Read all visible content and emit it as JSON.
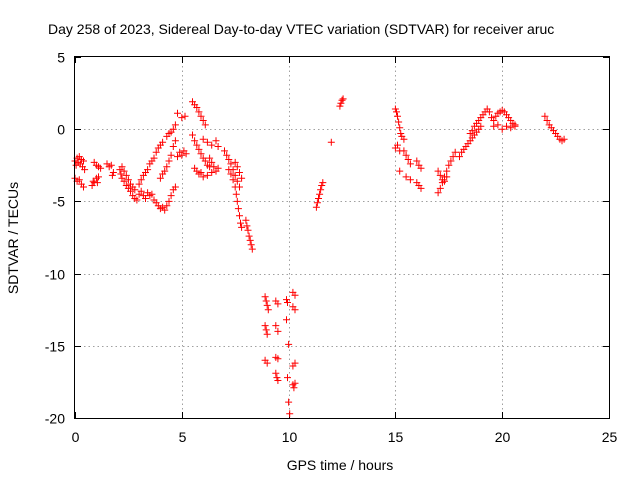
{
  "chart_data": {
    "type": "scatter",
    "title": "Day 258 of 2023, Sidereal Day-to-day VTEC variation (SDTVAR) for receiver aruc",
    "xlabel": "GPS time / hours",
    "ylabel": "SDTVAR / TECUs",
    "xlim": [
      0,
      25
    ],
    "ylim": [
      -20,
      5
    ],
    "xticks": [
      0,
      5,
      10,
      15,
      20,
      25
    ],
    "yticks": [
      5,
      0,
      -5,
      -10,
      -15,
      -20
    ],
    "xtick_labels": [
      "0",
      "5",
      "10",
      "15",
      "20",
      "25"
    ],
    "ytick_labels": [
      "5",
      "0",
      "-5",
      "-10",
      "-15",
      "-20"
    ],
    "grid": true,
    "marker": "+",
    "color": "#ff0000",
    "series": [
      {
        "name": "SDTVAR",
        "points": [
          [
            0.0,
            -2.2
          ],
          [
            0.05,
            -2.5
          ],
          [
            0.1,
            -2.0
          ],
          [
            0.15,
            -2.3
          ],
          [
            0.2,
            -1.9
          ],
          [
            0.25,
            -2.4
          ],
          [
            0.3,
            -2.1
          ],
          [
            0.35,
            -2.6
          ],
          [
            0.4,
            -2.2
          ],
          [
            0.45,
            -2.8
          ],
          [
            0.0,
            -3.4
          ],
          [
            0.1,
            -3.6
          ],
          [
            0.2,
            -3.5
          ],
          [
            0.3,
            -3.8
          ],
          [
            0.4,
            -4.0
          ],
          [
            0.8,
            -3.9
          ],
          [
            0.85,
            -3.6
          ],
          [
            0.9,
            -3.7
          ],
          [
            1.0,
            -3.4
          ],
          [
            1.05,
            -3.7
          ],
          [
            1.1,
            -3.3
          ],
          [
            0.9,
            -2.3
          ],
          [
            1.0,
            -2.5
          ],
          [
            1.1,
            -2.6
          ],
          [
            1.2,
            -2.7
          ],
          [
            1.5,
            -2.4
          ],
          [
            1.6,
            -2.6
          ],
          [
            1.7,
            -2.5
          ],
          [
            1.75,
            -3.2
          ],
          [
            1.8,
            -3.0
          ],
          [
            2.1,
            -2.8
          ],
          [
            2.15,
            -3.1
          ],
          [
            2.2,
            -3.4
          ],
          [
            2.3,
            -3.6
          ],
          [
            2.4,
            -3.9
          ],
          [
            2.5,
            -4.1
          ],
          [
            2.6,
            -4.3
          ],
          [
            2.7,
            -4.6
          ],
          [
            2.8,
            -4.8
          ],
          [
            2.9,
            -4.9
          ],
          [
            2.2,
            -2.6
          ],
          [
            2.3,
            -2.9
          ],
          [
            2.4,
            -3.2
          ],
          [
            2.5,
            -3.5
          ],
          [
            2.6,
            -3.8
          ],
          [
            2.7,
            -4.0
          ],
          [
            2.8,
            -4.2
          ],
          [
            3.0,
            -3.8
          ],
          [
            3.1,
            -3.5
          ],
          [
            3.2,
            -3.2
          ],
          [
            3.3,
            -3.0
          ],
          [
            3.4,
            -2.8
          ],
          [
            3.0,
            -4.5
          ],
          [
            3.1,
            -4.3
          ],
          [
            3.2,
            -4.6
          ],
          [
            3.3,
            -4.8
          ],
          [
            3.4,
            -4.4
          ],
          [
            3.5,
            -4.6
          ],
          [
            3.6,
            -4.5
          ],
          [
            3.7,
            -4.9
          ],
          [
            3.5,
            -2.4
          ],
          [
            3.6,
            -2.2
          ],
          [
            3.7,
            -2.0
          ],
          [
            3.8,
            -1.6
          ],
          [
            3.9,
            -1.3
          ],
          [
            4.0,
            -1.1
          ],
          [
            4.1,
            -0.9
          ],
          [
            3.8,
            -5.1
          ],
          [
            3.9,
            -5.3
          ],
          [
            4.0,
            -5.5
          ],
          [
            4.1,
            -5.4
          ],
          [
            4.2,
            -5.6
          ],
          [
            4.3,
            -5.3
          ],
          [
            4.4,
            -5.0
          ],
          [
            4.5,
            -4.6
          ],
          [
            4.6,
            -4.2
          ],
          [
            4.7,
            -4.0
          ],
          [
            4.0,
            -3.4
          ],
          [
            4.1,
            -3.1
          ],
          [
            4.2,
            -2.9
          ],
          [
            4.3,
            -2.6
          ],
          [
            4.4,
            -2.2
          ],
          [
            4.5,
            -1.8
          ],
          [
            4.6,
            -1.2
          ],
          [
            4.7,
            -0.8
          ],
          [
            4.3,
            -0.5
          ],
          [
            4.4,
            -0.3
          ],
          [
            4.5,
            -0.2
          ],
          [
            4.6,
            0.0
          ],
          [
            4.7,
            0.3
          ],
          [
            4.8,
            -1.9
          ],
          [
            4.9,
            -1.6
          ],
          [
            5.0,
            -1.8
          ],
          [
            5.1,
            -1.5
          ],
          [
            5.2,
            -1.7
          ],
          [
            4.8,
            1.1
          ],
          [
            5.0,
            0.8
          ],
          [
            5.15,
            0.9
          ],
          [
            5.5,
            1.9
          ],
          [
            5.6,
            1.7
          ],
          [
            5.7,
            1.5
          ],
          [
            5.8,
            1.2
          ],
          [
            5.9,
            0.9
          ],
          [
            6.0,
            0.6
          ],
          [
            6.1,
            0.3
          ],
          [
            5.5,
            -0.4
          ],
          [
            5.6,
            -0.8
          ],
          [
            5.7,
            -1.1
          ],
          [
            5.8,
            -1.4
          ],
          [
            5.9,
            -1.7
          ],
          [
            6.0,
            -2.0
          ],
          [
            6.1,
            -2.2
          ],
          [
            6.2,
            -2.5
          ],
          [
            6.3,
            -2.6
          ],
          [
            5.6,
            -2.7
          ],
          [
            5.7,
            -2.9
          ],
          [
            5.8,
            -3.1
          ],
          [
            5.9,
            -3.0
          ],
          [
            6.0,
            -3.3
          ],
          [
            6.2,
            -3.2
          ],
          [
            6.4,
            -3.0
          ],
          [
            6.0,
            -0.7
          ],
          [
            6.2,
            -0.9
          ],
          [
            6.4,
            -1.1
          ],
          [
            6.6,
            -0.8
          ],
          [
            6.7,
            -1.2
          ],
          [
            6.3,
            -2.0
          ],
          [
            6.4,
            -2.3
          ],
          [
            6.5,
            -2.6
          ],
          [
            6.6,
            -2.9
          ],
          [
            6.7,
            -2.7
          ],
          [
            7.0,
            -1.5
          ],
          [
            7.1,
            -1.8
          ],
          [
            7.2,
            -2.1
          ],
          [
            7.3,
            -2.4
          ],
          [
            7.4,
            -2.8
          ],
          [
            7.5,
            -3.2
          ],
          [
            7.6,
            -3.6
          ],
          [
            7.7,
            -4.0
          ],
          [
            7.2,
            -2.8
          ],
          [
            7.3,
            -3.1
          ],
          [
            7.4,
            -3.5
          ],
          [
            7.5,
            -4.0
          ],
          [
            7.55,
            -4.5
          ],
          [
            7.6,
            -5.0
          ],
          [
            7.65,
            -5.5
          ],
          [
            7.7,
            -6.0
          ],
          [
            7.75,
            -6.5
          ],
          [
            7.8,
            -6.8
          ],
          [
            7.5,
            -2.3
          ],
          [
            7.6,
            -2.6
          ],
          [
            7.7,
            -3.0
          ],
          [
            7.8,
            -3.4
          ],
          [
            8.0,
            -6.3
          ],
          [
            8.05,
            -6.7
          ],
          [
            8.1,
            -7.0
          ],
          [
            8.15,
            -7.4
          ],
          [
            8.2,
            -7.7
          ],
          [
            8.25,
            -8.0
          ],
          [
            8.3,
            -8.3
          ],
          [
            8.9,
            -11.6
          ],
          [
            8.95,
            -11.9
          ],
          [
            9.0,
            -12.2
          ],
          [
            9.05,
            -12.5
          ],
          [
            8.9,
            -13.6
          ],
          [
            8.95,
            -13.9
          ],
          [
            9.0,
            -14.2
          ],
          [
            8.9,
            -16.0
          ],
          [
            9.0,
            -16.2
          ],
          [
            9.4,
            -11.9
          ],
          [
            9.5,
            -12.1
          ],
          [
            9.4,
            -13.6
          ],
          [
            9.5,
            -14.0
          ],
          [
            9.4,
            -15.8
          ],
          [
            9.5,
            -15.9
          ],
          [
            9.4,
            -16.9
          ],
          [
            9.45,
            -17.2
          ],
          [
            9.5,
            -17.4
          ],
          [
            9.9,
            -11.8
          ],
          [
            9.95,
            -12.0
          ],
          [
            9.9,
            -13.2
          ],
          [
            10.0,
            -14.9
          ],
          [
            9.95,
            -17.2
          ],
          [
            10.0,
            -18.9
          ],
          [
            10.05,
            -19.7
          ],
          [
            10.2,
            -11.3
          ],
          [
            10.3,
            -11.5
          ],
          [
            10.2,
            -12.3
          ],
          [
            10.3,
            -12.5
          ],
          [
            10.2,
            -16.4
          ],
          [
            10.3,
            -16.2
          ],
          [
            10.2,
            -17.7
          ],
          [
            10.25,
            -17.9
          ],
          [
            10.3,
            -17.6
          ],
          [
            11.3,
            -5.4
          ],
          [
            11.35,
            -5.1
          ],
          [
            11.4,
            -4.8
          ],
          [
            11.45,
            -4.5
          ],
          [
            11.5,
            -4.2
          ],
          [
            11.55,
            -3.9
          ],
          [
            11.6,
            -3.7
          ],
          [
            12.0,
            -0.9
          ],
          [
            12.4,
            1.6
          ],
          [
            12.45,
            1.8
          ],
          [
            12.5,
            2.0
          ],
          [
            12.55,
            2.1
          ],
          [
            15.0,
            1.4
          ],
          [
            15.05,
            1.2
          ],
          [
            15.1,
            0.9
          ],
          [
            15.15,
            0.5
          ],
          [
            15.2,
            0.1
          ],
          [
            15.25,
            -0.3
          ],
          [
            15.0,
            -1.3
          ],
          [
            15.1,
            -1.1
          ],
          [
            15.2,
            -1.5
          ],
          [
            15.3,
            -0.5
          ],
          [
            15.4,
            -0.7
          ],
          [
            15.4,
            -1.5
          ],
          [
            15.5,
            -1.8
          ],
          [
            15.6,
            -2.1
          ],
          [
            15.7,
            -2.4
          ],
          [
            15.2,
            -2.9
          ],
          [
            15.5,
            -3.3
          ],
          [
            15.7,
            -3.5
          ],
          [
            16.0,
            -2.2
          ],
          [
            16.1,
            -2.5
          ],
          [
            16.2,
            -2.7
          ],
          [
            16.0,
            -3.7
          ],
          [
            16.1,
            -3.9
          ],
          [
            16.2,
            -4.1
          ],
          [
            17.0,
            -4.4
          ],
          [
            17.1,
            -4.1
          ],
          [
            17.2,
            -3.7
          ],
          [
            17.3,
            -3.3
          ],
          [
            17.4,
            -2.9
          ],
          [
            17.5,
            -2.5
          ],
          [
            17.6,
            -2.2
          ],
          [
            17.7,
            -1.9
          ],
          [
            17.8,
            -1.6
          ],
          [
            17.0,
            -2.9
          ],
          [
            17.1,
            -3.2
          ],
          [
            17.2,
            -3.5
          ],
          [
            17.3,
            -3.6
          ],
          [
            17.4,
            -3.3
          ],
          [
            18.0,
            -1.9
          ],
          [
            18.1,
            -1.6
          ],
          [
            18.2,
            -1.4
          ],
          [
            18.3,
            -1.2
          ],
          [
            18.4,
            -1.0
          ],
          [
            18.5,
            -0.8
          ],
          [
            18.6,
            -0.6
          ],
          [
            18.7,
            -0.4
          ],
          [
            18.8,
            -0.2
          ],
          [
            18.9,
            0.0
          ],
          [
            19.0,
            0.2
          ],
          [
            18.5,
            -0.3
          ],
          [
            18.6,
            -0.1
          ],
          [
            18.7,
            0.2
          ],
          [
            18.8,
            0.4
          ],
          [
            18.9,
            0.6
          ],
          [
            19.0,
            0.8
          ],
          [
            19.1,
            1.0
          ],
          [
            19.2,
            1.2
          ],
          [
            19.3,
            1.4
          ],
          [
            19.4,
            1.2
          ],
          [
            19.5,
            0.8
          ],
          [
            19.6,
            0.6
          ],
          [
            19.7,
            0.9
          ],
          [
            19.8,
            1.1
          ],
          [
            19.9,
            1.2
          ],
          [
            20.0,
            1.3
          ],
          [
            20.1,
            1.2
          ],
          [
            20.2,
            1.0
          ],
          [
            20.3,
            0.8
          ],
          [
            20.4,
            0.6
          ],
          [
            20.5,
            0.4
          ],
          [
            20.6,
            0.2
          ],
          [
            19.6,
            0.2
          ],
          [
            19.8,
            0.3
          ],
          [
            20.0,
            0.0
          ],
          [
            20.2,
            0.2
          ],
          [
            20.4,
            0.1
          ],
          [
            20.6,
            0.3
          ],
          [
            22.0,
            0.9
          ],
          [
            22.1,
            0.6
          ],
          [
            22.2,
            0.3
          ],
          [
            22.3,
            0.1
          ],
          [
            22.4,
            -0.1
          ],
          [
            22.5,
            -0.3
          ],
          [
            22.6,
            -0.5
          ],
          [
            22.7,
            -0.7
          ],
          [
            22.8,
            -0.8
          ],
          [
            22.9,
            -0.7
          ]
        ]
      }
    ]
  }
}
